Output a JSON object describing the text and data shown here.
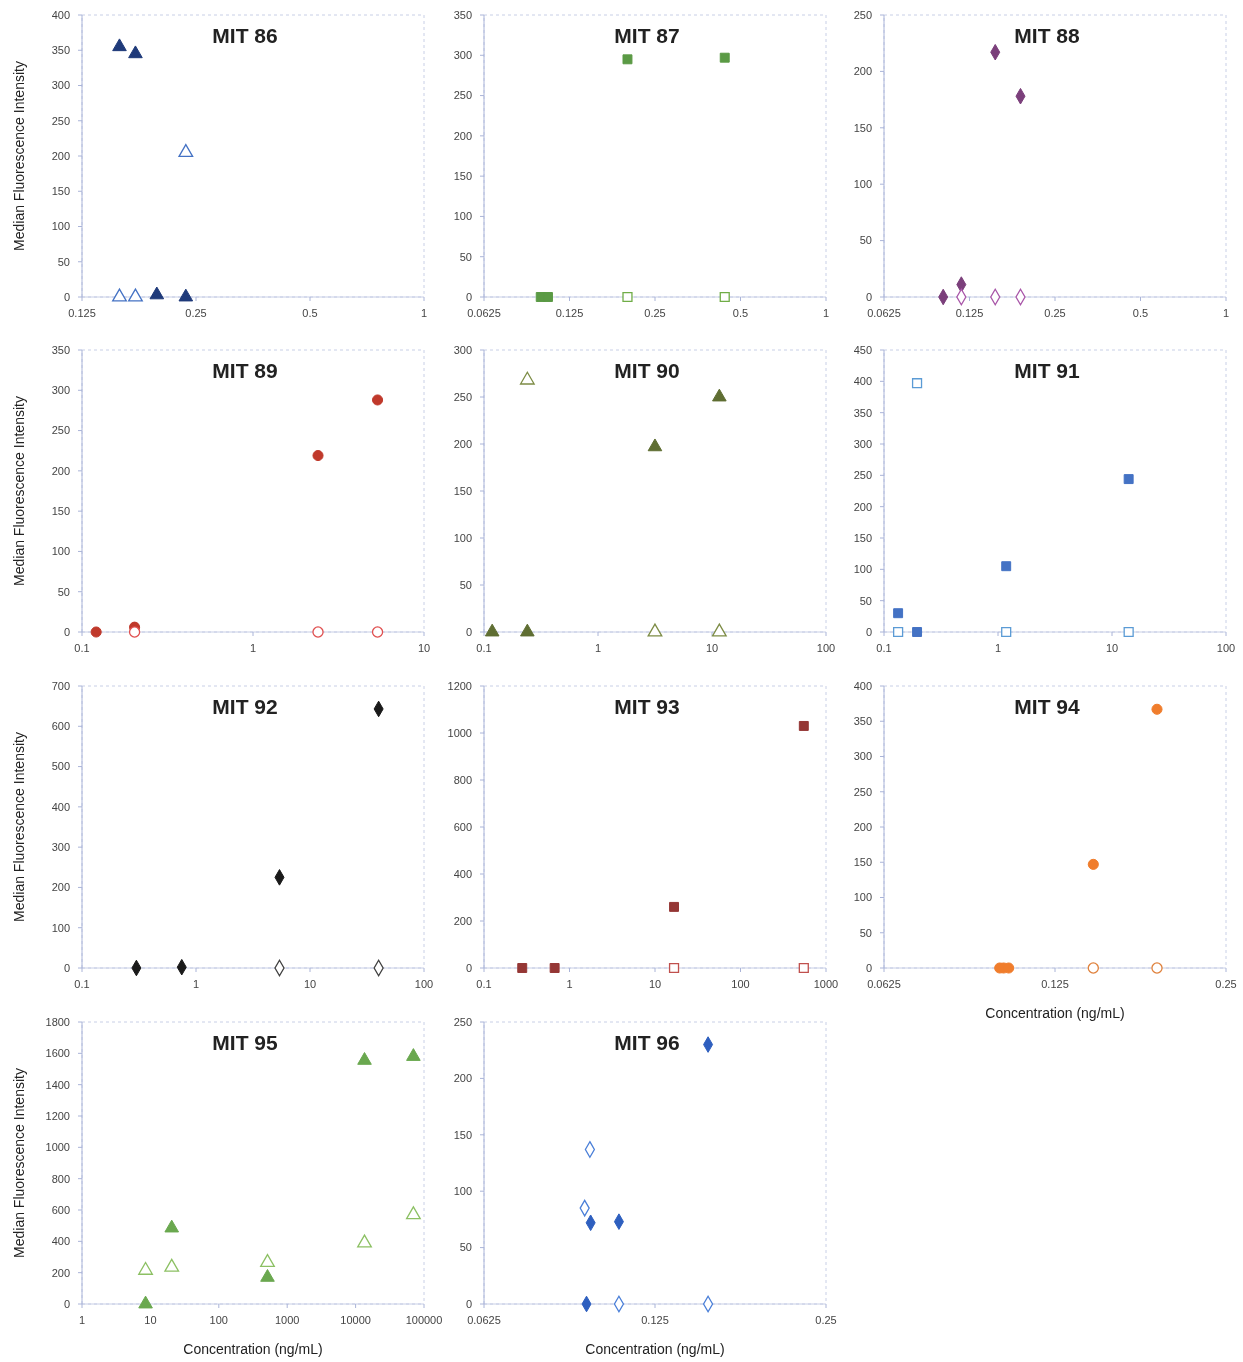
{
  "chart_data": [
    {
      "type": "scatter",
      "title": "MIT 86",
      "ylabel": "Median Fluorescence Intensity",
      "log": "x",
      "xlim": [
        0.125,
        1
      ],
      "xticks": [
        0.125,
        0.25,
        0.5,
        1
      ],
      "ylim": [
        0,
        400
      ],
      "yticks": [
        0,
        50,
        100,
        150,
        200,
        250,
        300,
        350,
        400
      ],
      "grid": false,
      "series": [
        {
          "type": "scatter",
          "marker": "triangle",
          "color": "#1f3a7a",
          "x": [
            0.157,
            0.173,
            0.197,
            0.235
          ],
          "values": [
            355,
            345,
            3,
            0
          ]
        },
        {
          "type": "scatter",
          "marker": "triangle",
          "color": "#4472c4",
          "x": [
            0.157,
            0.173,
            0.235
          ],
          "values": [
            0,
            0,
            205
          ]
        }
      ]
    },
    {
      "type": "scatter",
      "title": "MIT 87",
      "log": "x",
      "xlim": [
        0.0625,
        1
      ],
      "xticks": [
        0.0625,
        0.125,
        0.25,
        0.5,
        1
      ],
      "ylim": [
        0,
        350
      ],
      "yticks": [
        0,
        50,
        100,
        150,
        200,
        250,
        300,
        350
      ],
      "grid": false,
      "series": [
        {
          "type": "scatter",
          "marker": "square",
          "color": "#5b9a45",
          "x": [
            0.099,
            0.105,
            0.2,
            0.44
          ],
          "values": [
            0,
            0,
            295,
            297
          ]
        },
        {
          "type": "scatter",
          "marker": "square",
          "color": "#70ad47",
          "x": [
            0.2,
            0.44
          ],
          "values": [
            0,
            0
          ]
        }
      ]
    },
    {
      "type": "scatter",
      "title": "MIT 88",
      "log": "x",
      "xlim": [
        0.0625,
        1
      ],
      "xticks": [
        0.0625,
        0.125,
        0.25,
        0.5,
        1
      ],
      "ylim": [
        0,
        250
      ],
      "yticks": [
        0,
        50,
        100,
        150,
        200,
        250
      ],
      "grid": false,
      "series": [
        {
          "type": "scatter",
          "marker": "diamond",
          "color": "#7b3f7b",
          "x": [
            0.101,
            0.117,
            0.154,
            0.189
          ],
          "values": [
            0,
            11,
            217,
            178
          ]
        },
        {
          "type": "scatter",
          "marker": "diamond",
          "color": "#a855a8",
          "x": [
            0.117,
            0.154,
            0.189
          ],
          "values": [
            0,
            0,
            0
          ]
        }
      ]
    },
    {
      "type": "scatter",
      "title": "MIT 89",
      "ylabel": "Median Fluorescence Intensity",
      "log": "x",
      "xlim": [
        0.1,
        10
      ],
      "xticks": [
        0.1,
        1,
        10
      ],
      "ylim": [
        0,
        350
      ],
      "yticks": [
        0,
        50,
        100,
        150,
        200,
        250,
        300,
        350
      ],
      "grid": false,
      "series": [
        {
          "type": "scatter",
          "marker": "circle",
          "color": "#c0392b",
          "x": [
            0.121,
            0.203,
            2.4,
            5.35
          ],
          "values": [
            0,
            6,
            219,
            288
          ]
        },
        {
          "type": "scatter",
          "marker": "circle",
          "color": "#e05050",
          "x": [
            0.203,
            2.4,
            5.35
          ],
          "values": [
            0,
            0,
            0
          ]
        }
      ]
    },
    {
      "type": "scatter",
      "title": "MIT 90",
      "log": "x",
      "xlim": [
        0.1,
        100
      ],
      "xticks": [
        0.1,
        1,
        10,
        100
      ],
      "ylim": [
        0,
        300
      ],
      "yticks": [
        0,
        50,
        100,
        150,
        200,
        250,
        300
      ],
      "grid": false,
      "series": [
        {
          "type": "scatter",
          "marker": "triangle",
          "color": "#5f6e32",
          "x": [
            0.118,
            0.24,
            3.16,
            11.6
          ],
          "values": [
            0,
            0,
            197,
            250
          ]
        },
        {
          "type": "scatter",
          "marker": "triangle",
          "color": "#7d8c45",
          "x": [
            0.24,
            3.16,
            11.6
          ],
          "values": [
            268,
            0,
            0
          ]
        }
      ]
    },
    {
      "type": "scatter",
      "title": "MIT 91",
      "log": "x",
      "xlim": [
        0.1,
        100
      ],
      "xticks": [
        0.1,
        1,
        10,
        100
      ],
      "ylim": [
        0,
        450
      ],
      "yticks": [
        0,
        50,
        100,
        150,
        200,
        250,
        300,
        350,
        400,
        450
      ],
      "grid": false,
      "series": [
        {
          "type": "scatter",
          "marker": "square",
          "color": "#4472c4",
          "x": [
            0.133,
            0.195,
            1.18,
            14
          ],
          "values": [
            30,
            0,
            105,
            244
          ]
        },
        {
          "type": "scatter",
          "marker": "square",
          "color": "#5b9bd5",
          "x": [
            0.133,
            0.195,
            1.18,
            14
          ],
          "values": [
            0,
            397,
            0,
            0
          ]
        }
      ]
    },
    {
      "type": "scatter",
      "title": "MIT 92",
      "ylabel": "Median Fluorescence Intensity",
      "log": "x",
      "xlim": [
        0.1,
        100
      ],
      "xticks": [
        0.1,
        1,
        10,
        100
      ],
      "ylim": [
        0,
        700
      ],
      "yticks": [
        0,
        100,
        200,
        300,
        400,
        500,
        600,
        700
      ],
      "grid": false,
      "series": [
        {
          "type": "scatter",
          "marker": "diamond",
          "color": "#1a1a1a",
          "x": [
            0.3,
            0.75,
            5.4,
            40
          ],
          "values": [
            0,
            2,
            225,
            643
          ]
        },
        {
          "type": "scatter",
          "marker": "diamond",
          "color": "#404040",
          "x": [
            5.4,
            40
          ],
          "values": [
            0,
            0
          ]
        }
      ]
    },
    {
      "type": "scatter",
      "title": "MIT 93",
      "log": "x",
      "xlim": [
        0.1,
        1000
      ],
      "xticks": [
        0.1,
        1,
        10,
        100,
        1000
      ],
      "ylim": [
        0,
        1200
      ],
      "yticks": [
        0,
        200,
        400,
        600,
        800,
        1000,
        1200
      ],
      "grid": false,
      "series": [
        {
          "type": "scatter",
          "marker": "square",
          "color": "#953735",
          "x": [
            0.28,
            0.67,
            16.7,
            550
          ],
          "values": [
            0,
            0,
            260,
            1030
          ]
        },
        {
          "type": "scatter",
          "marker": "square",
          "color": "#c0504d",
          "x": [
            16.7,
            550
          ],
          "values": [
            0,
            0
          ]
        }
      ]
    },
    {
      "type": "scatter",
      "title": "MIT 94",
      "xlabel": "Concentration (ng/mL)",
      "log": "x",
      "xlim": [
        0.0625,
        0.25
      ],
      "xticks": [
        0.0625,
        0.125,
        0.25
      ],
      "ylim": [
        0,
        400
      ],
      "yticks": [
        0,
        50,
        100,
        150,
        200,
        250,
        300,
        350,
        400
      ],
      "grid": false,
      "series": [
        {
          "type": "scatter",
          "marker": "circle",
          "color": "#f07d2c",
          "x": [
            0.0999,
            0.1015,
            0.1036,
            0.146,
            0.189
          ],
          "values": [
            0,
            0,
            0,
            147,
            367
          ]
        },
        {
          "type": "scatter",
          "marker": "circle",
          "color": "#e0823d",
          "x": [
            0.146,
            0.189
          ],
          "values": [
            0,
            0
          ]
        }
      ]
    },
    {
      "type": "scatter",
      "title": "MIT 95",
      "xlabel": "Concentration (ng/mL)",
      "ylabel": "Median Fluorescence Intensity",
      "log": "x",
      "xlim": [
        1,
        100000
      ],
      "xticks": [
        1,
        10,
        100,
        1000,
        10000,
        100000
      ],
      "ylim": [
        0,
        1800
      ],
      "yticks": [
        0,
        200,
        400,
        600,
        800,
        1000,
        1200,
        1400,
        1600,
        1800
      ],
      "grid": false,
      "series": [
        {
          "type": "scatter",
          "marker": "triangle",
          "color": "#6aa84f",
          "x": [
            8.5,
            20.5,
            515,
            13500,
            70000
          ],
          "values": [
            0,
            485,
            170,
            1555,
            1580
          ]
        },
        {
          "type": "scatter",
          "marker": "triangle",
          "color": "#8cc063",
          "x": [
            8.5,
            20.5,
            515,
            13500,
            70000
          ],
          "values": [
            215,
            235,
            265,
            390,
            570
          ]
        }
      ]
    },
    {
      "type": "scatter",
      "title": "MIT 96",
      "xlabel": "Concentration (ng/mL)",
      "log": "x",
      "xlim": [
        0.0625,
        0.25
      ],
      "xticks": [
        0.0625,
        0.125,
        0.25
      ],
      "ylim": [
        0,
        250
      ],
      "yticks": [
        0,
        50,
        100,
        150,
        200,
        250
      ],
      "grid": false,
      "series": [
        {
          "type": "scatter",
          "marker": "diamond",
          "color": "#2e5fbf",
          "x": [
            0.0947,
            0.0963,
            0.108,
            0.155
          ],
          "values": [
            0,
            72,
            73,
            230
          ]
        },
        {
          "type": "scatter",
          "marker": "diamond",
          "color": "#4a7fd8",
          "x": [
            0.094,
            0.096,
            0.108,
            0.155
          ],
          "values": [
            85,
            137,
            0,
            0
          ]
        }
      ]
    }
  ]
}
